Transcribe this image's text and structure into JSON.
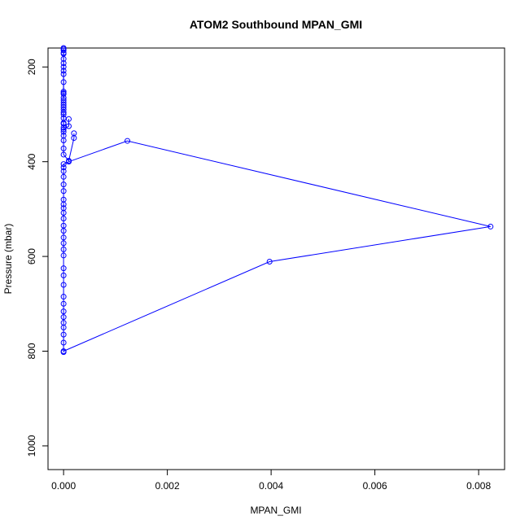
{
  "chart_data": {
    "type": "line",
    "title": "ATOM2 Southbound MPAN_GMI",
    "xlabel": "MPAN_GMI",
    "ylabel": "Pressure (mbar)",
    "xlim": [
      -0.0003,
      0.0085
    ],
    "ylim": [
      1050,
      160
    ],
    "y_reversed": true,
    "x_ticks": [
      0.0,
      0.002,
      0.004,
      0.006,
      0.008
    ],
    "x_tick_labels": [
      "0.000",
      "0.002",
      "0.004",
      "0.006",
      "0.008"
    ],
    "y_ticks": [
      200,
      400,
      600,
      800,
      1000
    ],
    "y_tick_labels": [
      "200",
      "400",
      "600",
      "800",
      "1000"
    ],
    "grid": false,
    "legend": "none",
    "series_color": "#0000ff",
    "series": [
      {
        "name": "",
        "points": [
          [
            0.0,
            802
          ],
          [
            0.0,
            782
          ],
          [
            0.0,
            765
          ],
          [
            0.0,
            750
          ],
          [
            0.0,
            740
          ],
          [
            0.0,
            728
          ],
          [
            0.0,
            716
          ],
          [
            0.0,
            700
          ],
          [
            0.0,
            685
          ],
          [
            0.0,
            660
          ],
          [
            0.0,
            640
          ],
          [
            0.0,
            625
          ],
          [
            0.0,
            598
          ],
          [
            0.0,
            585
          ],
          [
            0.0,
            572
          ],
          [
            0.0,
            560
          ],
          [
            0.0,
            546
          ],
          [
            0.0,
            535
          ],
          [
            0.0,
            520
          ],
          [
            0.0,
            508
          ],
          [
            0.0,
            498
          ],
          [
            0.0,
            490
          ],
          [
            0.0,
            480
          ],
          [
            0.0,
            462
          ],
          [
            0.0,
            448
          ],
          [
            0.0,
            432
          ],
          [
            0.0,
            420
          ],
          [
            0.0,
            412
          ],
          [
            0.0,
            405
          ],
          [
            0.0001,
            400
          ],
          [
            0.00123,
            356
          ],
          [
            0.00823,
            537
          ],
          [
            0.00397,
            611
          ],
          [
            0.0,
            800
          ]
        ]
      },
      {
        "name": "",
        "points": [
          [
            0.0002,
            340
          ],
          [
            0.0002,
            350
          ],
          [
            0.0001,
            398
          ],
          [
            0.0,
            385
          ],
          [
            0.0,
            372
          ],
          [
            0.0,
            355
          ],
          [
            0.0,
            345
          ],
          [
            0.0,
            337
          ],
          [
            0.0,
            328
          ],
          [
            0.0,
            320
          ],
          [
            0.0,
            308
          ],
          [
            0.0,
            300
          ],
          [
            0.0,
            290
          ],
          [
            0.0,
            280
          ],
          [
            0.0,
            275
          ],
          [
            0.0,
            265
          ],
          [
            0.0,
            257
          ],
          [
            0.0,
            252
          ],
          [
            0.0,
            208
          ],
          [
            0.0,
            192
          ],
          [
            0.0,
            172
          ],
          [
            0.0,
            165
          ],
          [
            0.0,
            160
          ]
        ]
      },
      {
        "name": "",
        "points": [
          [
            0.0001,
            310
          ],
          [
            0.0001,
            325
          ],
          [
            0.0,
            332
          ],
          [
            0.0,
            318
          ],
          [
            0.0,
            296
          ],
          [
            0.0,
            285
          ],
          [
            0.0,
            270
          ],
          [
            0.0,
            255
          ],
          [
            0.0,
            232
          ],
          [
            0.0,
            215
          ],
          [
            0.0,
            200
          ],
          [
            0.0,
            183
          ],
          [
            0.0,
            170
          ],
          [
            0.0,
            162
          ]
        ]
      }
    ]
  }
}
